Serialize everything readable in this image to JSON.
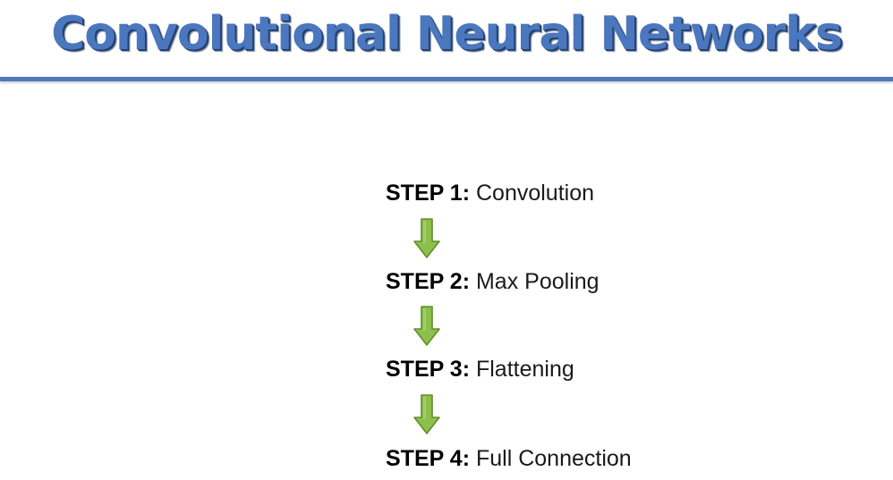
{
  "title": "Convolutional Neural Networks",
  "colors": {
    "title": "#4a77be",
    "rule": "#4f78b8",
    "arrow_fill": "#8cc04a",
    "arrow_stroke": "#5f8f2c"
  },
  "steps": [
    {
      "label": "STEP 1",
      "sep": ":",
      "text": "Convolution"
    },
    {
      "label": "STEP 2",
      "sep": ":",
      "text": "Max Pooling"
    },
    {
      "label": "STEP 3",
      "sep": ":",
      "text": "Flattening"
    },
    {
      "label": "STEP 4",
      "sep": ":",
      "text": "Full Connection"
    }
  ],
  "connector_icon": "down-arrow-icon"
}
